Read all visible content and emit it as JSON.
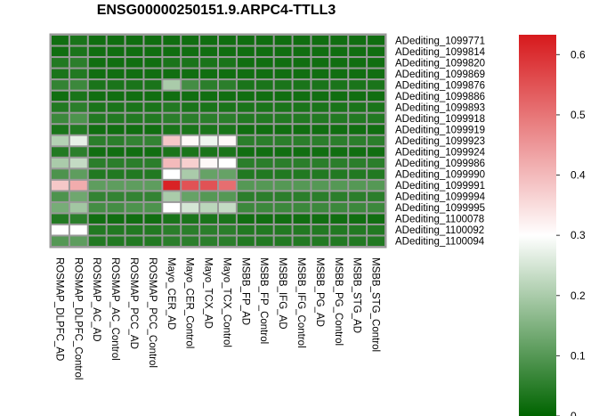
{
  "chart_data": {
    "type": "heatmap",
    "title": "ENSG00000250151.9.ARPC4-TTLL3",
    "columns": [
      "ROSMAP_DLPFC_AD",
      "ROSMAP_DLPFC_Control",
      "ROSMAP_AC_AD",
      "ROSMAP_AC_Control",
      "ROSMAP_PCC_AD",
      "ROSMAP_PCC_Control",
      "Mayo_CER_AD",
      "Mayo_CER_Control",
      "Mayo_TCX_AD",
      "Mayo_TCX_Control",
      "MSBB_FP_AD",
      "MSBB_FP_Control",
      "MSBB_IFG_AD",
      "MSBB_IFG_Control",
      "MSBB_PG_AD",
      "MSBB_PG_Control",
      "MSBB_STG_AD",
      "MSBB_STG_Control"
    ],
    "rows": [
      "ADediting_1099771",
      "ADediting_1099814",
      "ADediting_1099820",
      "ADediting_1099869",
      "ADediting_1099876",
      "ADediting_1099886",
      "ADediting_1099893",
      "ADediting_1099918",
      "ADediting_1099919",
      "ADediting_1099923",
      "ADediting_1099924",
      "ADediting_1099986",
      "ADediting_1099990",
      "ADediting_1099991",
      "ADediting_1099994",
      "ADediting_1099995",
      "ADediting_1100078",
      "ADediting_1100092",
      "ADediting_1100094"
    ],
    "values": [
      [
        0.02,
        0.03,
        0.02,
        0.02,
        0.02,
        0.02,
        0.02,
        0.02,
        0.02,
        0.02,
        0.02,
        0.02,
        0.02,
        0.02,
        0.02,
        0.02,
        0.02,
        0.02
      ],
      [
        0.02,
        0.03,
        0.02,
        0.02,
        0.02,
        0.02,
        0.02,
        0.02,
        0.02,
        0.02,
        0.02,
        0.02,
        0.02,
        0.02,
        0.02,
        0.02,
        0.02,
        0.02
      ],
      [
        0.04,
        0.05,
        0.02,
        0.02,
        0.02,
        0.02,
        0.03,
        0.03,
        0.03,
        0.03,
        0.02,
        0.02,
        0.02,
        0.02,
        0.02,
        0.02,
        0.02,
        0.02
      ],
      [
        0.03,
        0.04,
        0.02,
        0.02,
        0.02,
        0.02,
        0.02,
        0.02,
        0.02,
        0.02,
        0.02,
        0.02,
        0.02,
        0.02,
        0.02,
        0.02,
        0.02,
        0.02
      ],
      [
        0.06,
        0.07,
        0.03,
        0.03,
        0.03,
        0.03,
        0.2,
        0.08,
        0.05,
        0.05,
        0.03,
        0.03,
        0.03,
        0.03,
        0.03,
        0.03,
        0.03,
        0.03
      ],
      [
        0.02,
        0.03,
        0.02,
        0.02,
        0.02,
        0.02,
        0.02,
        0.02,
        0.02,
        0.02,
        0.02,
        0.02,
        0.02,
        0.02,
        0.02,
        0.02,
        0.02,
        0.02
      ],
      [
        0.04,
        0.05,
        0.03,
        0.03,
        0.03,
        0.03,
        0.04,
        0.03,
        0.03,
        0.03,
        0.03,
        0.03,
        0.03,
        0.03,
        0.03,
        0.03,
        0.03,
        0.03
      ],
      [
        0.07,
        0.09,
        0.04,
        0.04,
        0.04,
        0.04,
        0.05,
        0.05,
        0.05,
        0.05,
        0.04,
        0.04,
        0.04,
        0.04,
        0.04,
        0.04,
        0.04,
        0.04
      ],
      [
        0.03,
        0.04,
        0.02,
        0.02,
        0.02,
        0.02,
        0.03,
        0.03,
        0.03,
        0.03,
        0.02,
        0.02,
        0.02,
        0.02,
        0.02,
        0.02,
        0.02,
        0.02
      ],
      [
        0.21,
        0.27,
        0.05,
        0.05,
        0.06,
        0.06,
        0.38,
        0.31,
        0.28,
        0.31,
        0.05,
        0.05,
        0.05,
        0.05,
        0.05,
        0.05,
        0.05,
        0.05
      ],
      [
        0.04,
        0.05,
        0.02,
        0.02,
        0.02,
        0.02,
        0.03,
        0.03,
        0.03,
        0.03,
        0.02,
        0.02,
        0.02,
        0.02,
        0.02,
        0.02,
        0.02,
        0.02
      ],
      [
        0.2,
        0.23,
        0.05,
        0.05,
        0.05,
        0.05,
        0.4,
        0.37,
        0.31,
        0.3,
        0.05,
        0.05,
        0.05,
        0.05,
        0.05,
        0.05,
        0.05,
        0.05
      ],
      [
        0.09,
        0.11,
        0.04,
        0.04,
        0.04,
        0.04,
        0.3,
        0.2,
        0.12,
        0.12,
        0.04,
        0.04,
        0.04,
        0.04,
        0.04,
        0.04,
        0.04,
        0.04
      ],
      [
        0.38,
        0.42,
        0.11,
        0.11,
        0.11,
        0.11,
        0.62,
        0.55,
        0.55,
        0.51,
        0.1,
        0.1,
        0.1,
        0.1,
        0.1,
        0.1,
        0.1,
        0.1
      ],
      [
        0.09,
        0.13,
        0.06,
        0.06,
        0.06,
        0.06,
        0.2,
        0.12,
        0.1,
        0.1,
        0.05,
        0.05,
        0.05,
        0.05,
        0.05,
        0.05,
        0.05,
        0.05
      ],
      [
        0.14,
        0.19,
        0.08,
        0.08,
        0.09,
        0.09,
        0.3,
        0.25,
        0.22,
        0.23,
        0.07,
        0.07,
        0.07,
        0.07,
        0.07,
        0.07,
        0.07,
        0.07
      ],
      [
        0.04,
        0.05,
        0.02,
        0.02,
        0.02,
        0.02,
        0.03,
        0.03,
        0.03,
        0.03,
        0.02,
        0.02,
        0.02,
        0.02,
        0.02,
        0.02,
        0.02,
        0.02
      ],
      [
        0.3,
        0.3,
        0.04,
        0.04,
        0.04,
        0.04,
        0.05,
        0.05,
        0.05,
        0.05,
        0.04,
        0.04,
        0.04,
        0.04,
        0.04,
        0.04,
        0.04,
        0.04
      ],
      [
        0.1,
        0.11,
        0.04,
        0.04,
        0.04,
        0.04,
        0.05,
        0.05,
        0.05,
        0.05,
        0.04,
        0.04,
        0.04,
        0.04,
        0.04,
        0.04,
        0.04,
        0.04
      ]
    ],
    "colorbar": {
      "range": [
        0,
        0.633
      ],
      "ticks": [
        0,
        0.1,
        0.2,
        0.3,
        0.4,
        0.5,
        0.6
      ],
      "tick_labels": [
        "0",
        "0.1",
        "0.2",
        "0.3",
        "0.4",
        "0.5",
        "0.6"
      ],
      "colors": {
        "low": "#006400",
        "mid": "#ffffff",
        "high": "#d7191c"
      },
      "mid_value": 0.3
    },
    "cell_border_color": "#999999",
    "legend": "right"
  }
}
